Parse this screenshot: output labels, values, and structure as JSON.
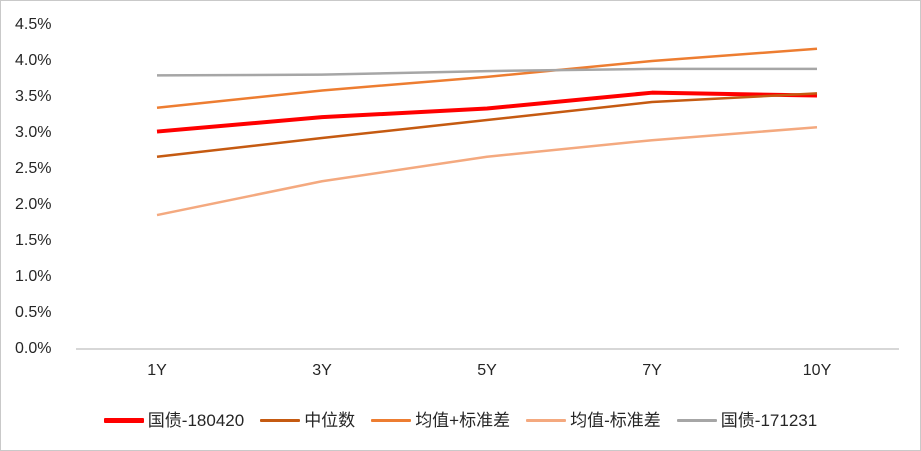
{
  "chart_data": {
    "type": "line",
    "title": "",
    "categories": [
      "1Y",
      "3Y",
      "5Y",
      "7Y",
      "10Y"
    ],
    "series": [
      {
        "name": "国债-180420",
        "color": "#FF0000",
        "line_width": 4,
        "values": [
          3.02,
          3.22,
          3.34,
          3.56,
          3.52
        ]
      },
      {
        "name": "中位数",
        "color": "#C55A11",
        "line_width": 2.5,
        "values": [
          2.67,
          2.93,
          3.18,
          3.43,
          3.55
        ]
      },
      {
        "name": "均值+标准差",
        "color": "#ED7D31",
        "line_width": 2.5,
        "values": [
          3.35,
          3.59,
          3.78,
          4.0,
          4.17
        ]
      },
      {
        "name": "均值-标准差",
        "color": "#F4A97F",
        "line_width": 2.5,
        "values": [
          1.86,
          2.33,
          2.67,
          2.9,
          3.08
        ]
      },
      {
        "name": "国债-171231",
        "color": "#A6A6A6",
        "line_width": 2.5,
        "values": [
          3.8,
          3.81,
          3.86,
          3.89,
          3.89
        ]
      }
    ],
    "y_axis": {
      "min": 0.0,
      "max": 4.5,
      "step": 0.5,
      "tick_labels_top_to_bottom": [
        "4.5%",
        "4.0%",
        "3.5%",
        "3.0%",
        "2.5%",
        "2.0%",
        "1.5%",
        "1.0%",
        "0.5%",
        "0.0%"
      ]
    },
    "x_axis": {
      "tick_labels": [
        "1Y",
        "3Y",
        "5Y",
        "7Y",
        "10Y"
      ]
    },
    "grid": false,
    "legend_position": "bottom"
  },
  "colors": {
    "background": "#FFFFFF",
    "border": "#C9C9C9",
    "axis_line": "#BFBFBF",
    "text": "#262626"
  }
}
